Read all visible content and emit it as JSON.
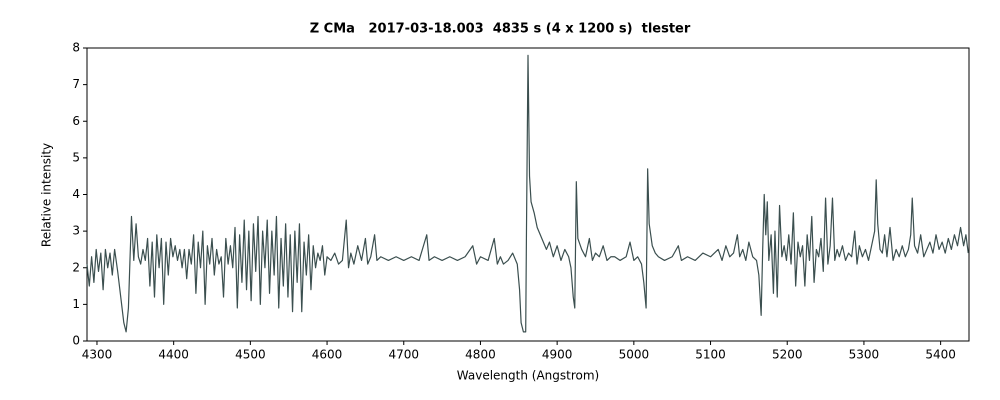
{
  "chart_data": {
    "type": "line",
    "title": "Z CMa   2017-03-18.003  4835 s (4 x 1200 s)  tlester",
    "x_label": "Wavelength (Angstrom)",
    "y_label": "Relative intensity",
    "color": "#3b4f4f",
    "grid": false,
    "xlim": [
      4287,
      5437
    ],
    "ylim": [
      0,
      8
    ],
    "xticks": [
      4300,
      4400,
      4500,
      4600,
      4700,
      4800,
      4900,
      5000,
      5100,
      5200,
      5300,
      5400
    ],
    "yticks": [
      0,
      1,
      2,
      3,
      4,
      5,
      6,
      7,
      8
    ],
    "x": [
      4287,
      4290,
      4293,
      4296,
      4299,
      4302,
      4305,
      4308,
      4311,
      4314,
      4317,
      4320,
      4323,
      4327,
      4331,
      4335,
      4338,
      4341,
      4343,
      4345,
      4348,
      4351,
      4354,
      4357,
      4360,
      4363,
      4366,
      4369,
      4372,
      4375,
      4378,
      4381,
      4384,
      4387,
      4390,
      4393,
      4396,
      4399,
      4402,
      4405,
      4408,
      4411,
      4414,
      4417,
      4420,
      4423,
      4426,
      4429,
      4432,
      4435,
      4438,
      4441,
      4444,
      4447,
      4450,
      4453,
      4456,
      4459,
      4462,
      4465,
      4468,
      4471,
      4474,
      4477,
      4480,
      4483,
      4486,
      4489,
      4492,
      4495,
      4498,
      4501,
      4504,
      4507,
      4510,
      4513,
      4516,
      4519,
      4522,
      4525,
      4528,
      4531,
      4534,
      4537,
      4540,
      4543,
      4546,
      4549,
      4552,
      4555,
      4558,
      4561,
      4564,
      4567,
      4570,
      4573,
      4576,
      4579,
      4582,
      4585,
      4588,
      4591,
      4594,
      4597,
      4600,
      4605,
      4610,
      4615,
      4620,
      4625,
      4628,
      4631,
      4635,
      4640,
      4645,
      4650,
      4653,
      4657,
      4662,
      4665,
      4670,
      4680,
      4690,
      4700,
      4710,
      4720,
      4730,
      4733,
      4740,
      4750,
      4760,
      4770,
      4780,
      4790,
      4795,
      4800,
      4810,
      4818,
      4822,
      4826,
      4830,
      4836,
      4842,
      4848,
      4851,
      4853,
      4856,
      4859,
      4860,
      4862,
      4864,
      4866,
      4870,
      4874,
      4878,
      4882,
      4886,
      4890,
      4895,
      4900,
      4905,
      4910,
      4915,
      4918,
      4921,
      4923,
      4925,
      4927,
      4932,
      4937,
      4942,
      4946,
      4950,
      4955,
      4960,
      4965,
      4970,
      4975,
      4982,
      4990,
      4995,
      5000,
      5005,
      5010,
      5013,
      5016,
      5018,
      5020,
      5024,
      5028,
      5032,
      5040,
      5050,
      5058,
      5062,
      5070,
      5080,
      5090,
      5100,
      5110,
      5115,
      5120,
      5125,
      5130,
      5135,
      5138,
      5142,
      5146,
      5150,
      5155,
      5160,
      5163,
      5166,
      5168,
      5170,
      5172,
      5174,
      5176,
      5179,
      5182,
      5184,
      5187,
      5190,
      5193,
      5196,
      5199,
      5202,
      5205,
      5208,
      5211,
      5214,
      5217,
      5220,
      5223,
      5226,
      5229,
      5232,
      5235,
      5238,
      5241,
      5244,
      5247,
      5250,
      5253,
      5256,
      5259,
      5262,
      5265,
      5268,
      5272,
      5276,
      5280,
      5284,
      5288,
      5291,
      5294,
      5298,
      5302,
      5306,
      5310,
      5314,
      5316,
      5318,
      5321,
      5324,
      5327,
      5330,
      5334,
      5338,
      5342,
      5346,
      5350,
      5354,
      5358,
      5361,
      5363,
      5366,
      5370,
      5374,
      5378,
      5382,
      5386,
      5390,
      5394,
      5398,
      5402,
      5406,
      5410,
      5414,
      5418,
      5422,
      5426,
      5430,
      5433,
      5436
    ],
    "values": [
      2.1,
      1.5,
      2.3,
      1.6,
      2.5,
      1.9,
      2.4,
      1.4,
      2.5,
      2.0,
      2.4,
      1.8,
      2.5,
      1.9,
      1.2,
      0.5,
      0.25,
      0.9,
      2.2,
      3.4,
      2.2,
      3.2,
      2.3,
      2.1,
      2.5,
      2.2,
      2.8,
      1.5,
      2.7,
      1.2,
      2.9,
      2.0,
      2.8,
      1.0,
      2.7,
      1.8,
      2.8,
      2.3,
      2.6,
      2.2,
      2.5,
      2.0,
      2.5,
      1.7,
      2.5,
      2.1,
      2.9,
      1.3,
      2.7,
      2.0,
      3.0,
      1.0,
      2.6,
      2.1,
      2.8,
      1.8,
      2.5,
      2.1,
      2.3,
      1.2,
      2.8,
      2.1,
      2.6,
      2.0,
      3.1,
      0.9,
      2.9,
      1.6,
      3.3,
      1.4,
      3.0,
      1.1,
      3.2,
      1.9,
      3.4,
      1.0,
      3.0,
      2.0,
      3.3,
      1.3,
      3.0,
      1.8,
      3.4,
      0.9,
      2.8,
      1.5,
      3.2,
      1.2,
      2.9,
      0.8,
      3.0,
      1.6,
      3.2,
      0.8,
      2.7,
      1.8,
      2.9,
      1.4,
      2.6,
      2.0,
      2.4,
      2.2,
      2.6,
      1.8,
      2.3,
      2.2,
      2.4,
      2.1,
      2.2,
      3.3,
      2.0,
      2.4,
      2.1,
      2.6,
      2.2,
      2.8,
      2.1,
      2.3,
      2.9,
      2.2,
      2.3,
      2.2,
      2.3,
      2.2,
      2.3,
      2.2,
      2.9,
      2.2,
      2.3,
      2.2,
      2.3,
      2.2,
      2.3,
      2.6,
      2.1,
      2.3,
      2.2,
      2.8,
      2.1,
      2.3,
      2.1,
      2.2,
      2.4,
      2.1,
      1.4,
      0.5,
      0.25,
      0.25,
      3.0,
      7.8,
      4.5,
      3.8,
      3.5,
      3.1,
      2.9,
      2.7,
      2.5,
      2.7,
      2.3,
      2.6,
      2.2,
      2.5,
      2.3,
      2.0,
      1.2,
      0.9,
      4.35,
      2.8,
      2.5,
      2.3,
      2.8,
      2.2,
      2.4,
      2.3,
      2.6,
      2.2,
      2.3,
      2.3,
      2.2,
      2.3,
      2.7,
      2.2,
      2.3,
      2.1,
      1.6,
      0.9,
      4.7,
      3.2,
      2.6,
      2.4,
      2.3,
      2.2,
      2.3,
      2.6,
      2.2,
      2.3,
      2.2,
      2.4,
      2.3,
      2.5,
      2.2,
      2.6,
      2.3,
      2.4,
      2.9,
      2.3,
      2.5,
      2.2,
      2.7,
      2.3,
      2.2,
      1.8,
      0.7,
      2.5,
      4.0,
      2.9,
      3.8,
      2.2,
      2.9,
      1.3,
      3.0,
      1.2,
      3.7,
      2.3,
      2.6,
      2.2,
      2.9,
      2.1,
      3.5,
      1.5,
      2.7,
      2.3,
      2.6,
      1.5,
      2.9,
      2.2,
      3.4,
      1.6,
      2.5,
      2.3,
      2.8,
      1.9,
      3.9,
      2.1,
      2.6,
      3.9,
      2.2,
      2.5,
      2.3,
      2.6,
      2.2,
      2.4,
      2.3,
      3.0,
      2.1,
      2.6,
      2.3,
      2.5,
      2.2,
      2.6,
      3.0,
      4.4,
      3.2,
      2.5,
      2.4,
      2.9,
      2.3,
      3.1,
      2.2,
      2.5,
      2.3,
      2.6,
      2.3,
      2.5,
      2.9,
      3.9,
      2.6,
      2.4,
      2.9,
      2.3,
      2.5,
      2.7,
      2.4,
      2.9,
      2.5,
      2.7,
      2.4,
      2.8,
      2.5,
      2.9,
      2.6,
      3.1,
      2.6,
      2.9,
      2.4
    ]
  }
}
